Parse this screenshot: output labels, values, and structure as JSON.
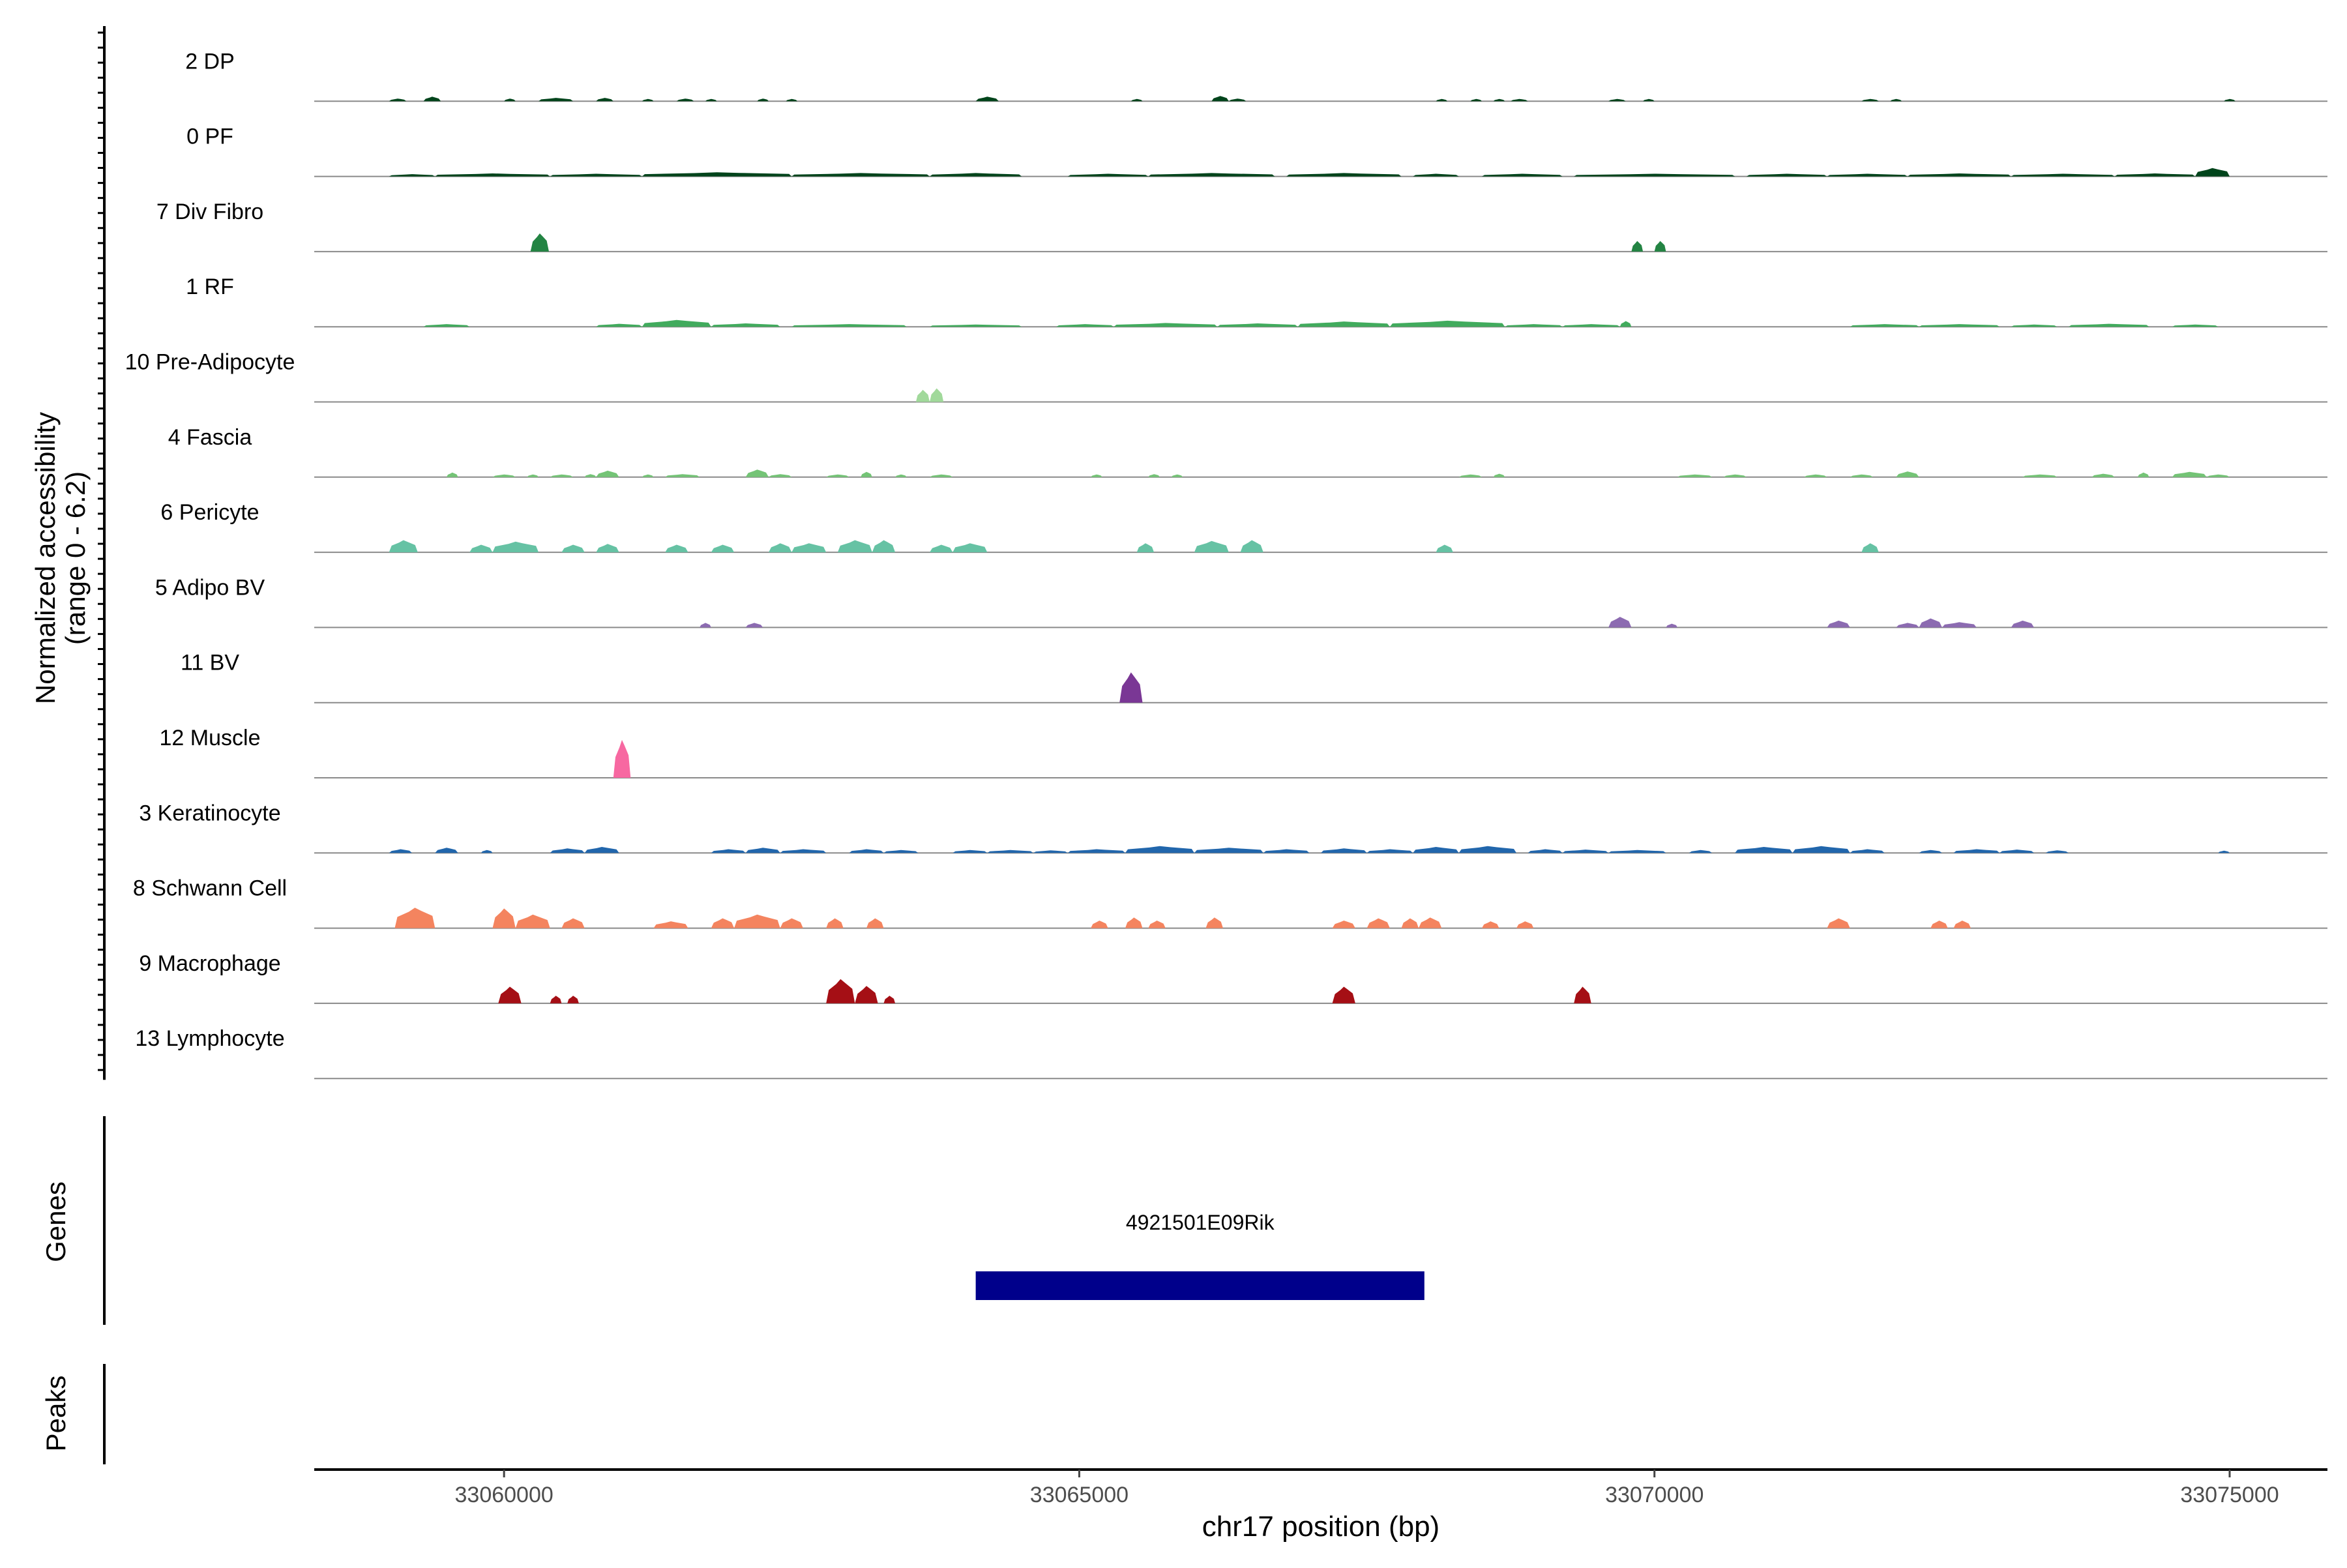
{
  "chart_data": {
    "type": "area",
    "title": "",
    "ylabel_line1": "Normalized accessibility",
    "ylabel_line2": "(range 0 - 6.2)",
    "y_range": [
      0,
      6.2
    ],
    "xlabel": "chr17 position (bp)",
    "xlim": [
      33058350,
      33075850
    ],
    "x_ticks": [
      33060000,
      33065000,
      33070000,
      33075000
    ],
    "x_tick_labels": [
      "33060000",
      "33065000",
      "33070000",
      "33075000"
    ],
    "tracks": [
      {
        "label": "2 DP",
        "color": "#00441b",
        "peaks": [
          [
            33059000,
            33059150,
            0.35
          ],
          [
            33059300,
            33059450,
            0.6
          ],
          [
            33060000,
            33060100,
            0.35
          ],
          [
            33060300,
            33060600,
            0.45
          ],
          [
            33060800,
            33060950,
            0.45
          ],
          [
            33061200,
            33061300,
            0.3
          ],
          [
            33061500,
            33061650,
            0.35
          ],
          [
            33061750,
            33061850,
            0.3
          ],
          [
            33062200,
            33062300,
            0.35
          ],
          [
            33062450,
            33062550,
            0.3
          ],
          [
            33064100,
            33064300,
            0.6
          ],
          [
            33065450,
            33065550,
            0.3
          ],
          [
            33066150,
            33066300,
            0.7
          ],
          [
            33066300,
            33066450,
            0.35
          ],
          [
            33068100,
            33068200,
            0.3
          ],
          [
            33068400,
            33068500,
            0.3
          ],
          [
            33068600,
            33068700,
            0.3
          ],
          [
            33068750,
            33068900,
            0.3
          ],
          [
            33069600,
            33069750,
            0.3
          ],
          [
            33069900,
            33070000,
            0.3
          ],
          [
            33071800,
            33071950,
            0.3
          ],
          [
            33072050,
            33072150,
            0.3
          ],
          [
            33074950,
            33075050,
            0.3
          ]
        ]
      },
      {
        "label": "0 PF",
        "color": "#00441b",
        "peaks": [
          [
            33059000,
            33059400,
            0.3
          ],
          [
            33059400,
            33060400,
            0.4
          ],
          [
            33060400,
            33061200,
            0.35
          ],
          [
            33061200,
            33062500,
            0.55
          ],
          [
            33062500,
            33063700,
            0.45
          ],
          [
            33063700,
            33064500,
            0.45
          ],
          [
            33064900,
            33065600,
            0.35
          ],
          [
            33065600,
            33066700,
            0.45
          ],
          [
            33066800,
            33067800,
            0.45
          ],
          [
            33067900,
            33068300,
            0.35
          ],
          [
            33068500,
            33069200,
            0.35
          ],
          [
            33069300,
            33070700,
            0.35
          ],
          [
            33070800,
            33071500,
            0.35
          ],
          [
            33071500,
            33072200,
            0.35
          ],
          [
            33072200,
            33073100,
            0.4
          ],
          [
            33073100,
            33074000,
            0.35
          ],
          [
            33074000,
            33074700,
            0.4
          ],
          [
            33074700,
            33075000,
            1.1
          ]
        ]
      },
      {
        "label": "7 Div Fibro",
        "color": "#238443",
        "peaks": [
          [
            33060230,
            33060390,
            2.4
          ],
          [
            33069800,
            33069900,
            1.4
          ],
          [
            33070000,
            33070100,
            1.4
          ]
        ]
      },
      {
        "label": "1 RF",
        "color": "#41ab5d",
        "peaks": [
          [
            33059300,
            33059700,
            0.35
          ],
          [
            33060800,
            33061200,
            0.4
          ],
          [
            33061200,
            33061800,
            0.9
          ],
          [
            33061800,
            33062400,
            0.45
          ],
          [
            33062500,
            33063500,
            0.35
          ],
          [
            33063700,
            33064500,
            0.3
          ],
          [
            33064800,
            33065300,
            0.35
          ],
          [
            33065300,
            33066200,
            0.5
          ],
          [
            33066200,
            33066900,
            0.45
          ],
          [
            33066900,
            33067700,
            0.7
          ],
          [
            33067700,
            33068700,
            0.8
          ],
          [
            33068700,
            33069200,
            0.35
          ],
          [
            33069200,
            33069700,
            0.35
          ],
          [
            33069700,
            33069800,
            0.75
          ],
          [
            33071700,
            33072300,
            0.35
          ],
          [
            33072300,
            33073000,
            0.35
          ],
          [
            33073100,
            33073500,
            0.3
          ],
          [
            33073600,
            33074300,
            0.4
          ],
          [
            33074500,
            33074900,
            0.3
          ]
        ]
      },
      {
        "label": "10 Pre-Adipocyte",
        "color": "#a1d99b",
        "peaks": [
          [
            33063580,
            33063700,
            1.6
          ],
          [
            33063700,
            33063820,
            1.8
          ]
        ]
      },
      {
        "label": "4 Fascia",
        "color": "#74c476",
        "peaks": [
          [
            33059500,
            33059600,
            0.6
          ],
          [
            33059900,
            33060100,
            0.35
          ],
          [
            33060200,
            33060300,
            0.35
          ],
          [
            33060400,
            33060600,
            0.35
          ],
          [
            33060700,
            33060800,
            0.4
          ],
          [
            33060800,
            33061000,
            0.85
          ],
          [
            33061200,
            33061300,
            0.35
          ],
          [
            33061400,
            33061700,
            0.4
          ],
          [
            33062100,
            33062300,
            1.0
          ],
          [
            33062300,
            33062500,
            0.4
          ],
          [
            33062800,
            33063000,
            0.35
          ],
          [
            33063100,
            33063200,
            0.7
          ],
          [
            33063400,
            33063500,
            0.35
          ],
          [
            33063700,
            33063900,
            0.35
          ],
          [
            33065100,
            33065200,
            0.35
          ],
          [
            33065600,
            33065700,
            0.4
          ],
          [
            33065800,
            33065900,
            0.35
          ],
          [
            33068300,
            33068500,
            0.35
          ],
          [
            33068600,
            33068700,
            0.45
          ],
          [
            33070200,
            33070500,
            0.35
          ],
          [
            33070600,
            33070800,
            0.35
          ],
          [
            33071300,
            33071500,
            0.35
          ],
          [
            33071700,
            33071900,
            0.35
          ],
          [
            33072100,
            33072300,
            0.75
          ],
          [
            33073200,
            33073500,
            0.35
          ],
          [
            33073800,
            33074000,
            0.45
          ],
          [
            33074200,
            33074300,
            0.6
          ],
          [
            33074500,
            33074800,
            0.7
          ],
          [
            33074800,
            33075000,
            0.35
          ]
        ]
      },
      {
        "label": "6 Pericyte",
        "color": "#66c2a4",
        "peaks": [
          [
            33059000,
            33059250,
            1.6
          ],
          [
            33059700,
            33059900,
            1.0
          ],
          [
            33059900,
            33060300,
            1.4
          ],
          [
            33060500,
            33060700,
            1.0
          ],
          [
            33060800,
            33061000,
            1.1
          ],
          [
            33061400,
            33061600,
            1.0
          ],
          [
            33061800,
            33062000,
            1.0
          ],
          [
            33062300,
            33062500,
            1.2
          ],
          [
            33062500,
            33062800,
            1.2
          ],
          [
            33062900,
            33063200,
            1.6
          ],
          [
            33063200,
            33063400,
            1.6
          ],
          [
            33063700,
            33063900,
            1.0
          ],
          [
            33063900,
            33064200,
            1.2
          ],
          [
            33065500,
            33065650,
            1.2
          ],
          [
            33066000,
            33066300,
            1.5
          ],
          [
            33066400,
            33066600,
            1.6
          ],
          [
            33068100,
            33068250,
            1.0
          ],
          [
            33071800,
            33071950,
            1.2
          ]
        ]
      },
      {
        "label": "5 Adipo BV",
        "color": "#8c6bb1",
        "peaks": [
          [
            33061700,
            33061800,
            0.6
          ],
          [
            33062100,
            33062250,
            0.6
          ],
          [
            33069600,
            33069800,
            1.4
          ],
          [
            33070100,
            33070200,
            0.5
          ],
          [
            33071500,
            33071700,
            0.9
          ],
          [
            33072100,
            33072300,
            0.6
          ],
          [
            33072300,
            33072500,
            1.2
          ],
          [
            33072500,
            33072800,
            0.7
          ],
          [
            33073100,
            33073300,
            0.9
          ]
        ]
      },
      {
        "label": "11 BV",
        "color": "#7a3795",
        "peaks": [
          [
            33065350,
            33065550,
            4.0
          ]
        ]
      },
      {
        "label": "12 Muscle",
        "color": "#f768a1",
        "peaks": [
          [
            33060950,
            33061100,
            5.0
          ]
        ]
      },
      {
        "label": "3 Keratinocyte",
        "color": "#2166ac",
        "peaks": [
          [
            33059000,
            33059200,
            0.5
          ],
          [
            33059400,
            33059600,
            0.7
          ],
          [
            33059800,
            33059900,
            0.4
          ],
          [
            33060400,
            33060700,
            0.6
          ],
          [
            33060700,
            33061000,
            0.8
          ],
          [
            33061800,
            33062100,
            0.5
          ],
          [
            33062100,
            33062400,
            0.7
          ],
          [
            33062400,
            33062800,
            0.5
          ],
          [
            33063000,
            33063300,
            0.5
          ],
          [
            33063300,
            33063600,
            0.4
          ],
          [
            33063900,
            33064200,
            0.4
          ],
          [
            33064200,
            33064600,
            0.4
          ],
          [
            33064600,
            33064900,
            0.35
          ],
          [
            33064900,
            33065400,
            0.5
          ],
          [
            33065400,
            33066000,
            0.9
          ],
          [
            33066000,
            33066600,
            0.7
          ],
          [
            33066600,
            33067000,
            0.5
          ],
          [
            33067100,
            33067500,
            0.6
          ],
          [
            33067500,
            33067900,
            0.5
          ],
          [
            33067900,
            33068300,
            0.8
          ],
          [
            33068300,
            33068800,
            0.9
          ],
          [
            33068900,
            33069200,
            0.5
          ],
          [
            33069200,
            33069600,
            0.45
          ],
          [
            33069600,
            33070100,
            0.4
          ],
          [
            33070300,
            33070500,
            0.4
          ],
          [
            33070700,
            33071200,
            0.8
          ],
          [
            33071200,
            33071700,
            0.9
          ],
          [
            33071700,
            33072000,
            0.5
          ],
          [
            33072300,
            33072500,
            0.4
          ],
          [
            33072600,
            33073000,
            0.5
          ],
          [
            33073000,
            33073300,
            0.45
          ],
          [
            33073400,
            33073600,
            0.35
          ],
          [
            33074900,
            33075000,
            0.3
          ]
        ]
      },
      {
        "label": "8 Schwann Cell",
        "color": "#f4845f",
        "peaks": [
          [
            33059050,
            33059400,
            2.7
          ],
          [
            33059900,
            33060100,
            2.6
          ],
          [
            33060100,
            33060400,
            1.8
          ],
          [
            33060500,
            33060700,
            1.3
          ],
          [
            33061300,
            33061600,
            0.9
          ],
          [
            33061800,
            33062000,
            1.3
          ],
          [
            33062000,
            33062400,
            1.8
          ],
          [
            33062400,
            33062600,
            1.3
          ],
          [
            33062800,
            33062950,
            1.3
          ],
          [
            33063150,
            33063300,
            1.3
          ],
          [
            33065100,
            33065250,
            1.0
          ],
          [
            33065400,
            33065550,
            1.4
          ],
          [
            33065600,
            33065750,
            1.0
          ],
          [
            33066100,
            33066250,
            1.4
          ],
          [
            33067200,
            33067400,
            1.0
          ],
          [
            33067500,
            33067700,
            1.3
          ],
          [
            33067800,
            33067950,
            1.3
          ],
          [
            33067950,
            33068150,
            1.4
          ],
          [
            33068500,
            33068650,
            0.9
          ],
          [
            33068800,
            33068950,
            0.9
          ],
          [
            33071500,
            33071700,
            1.3
          ],
          [
            33072400,
            33072550,
            1.0
          ],
          [
            33072600,
            33072750,
            1.0
          ]
        ]
      },
      {
        "label": "9 Macrophage",
        "color": "#a50f15",
        "peaks": [
          [
            33059950,
            33060150,
            2.2
          ],
          [
            33060400,
            33060500,
            1.0
          ],
          [
            33060550,
            33060650,
            1.0
          ],
          [
            33062800,
            33063050,
            3.2
          ],
          [
            33063050,
            33063250,
            2.3
          ],
          [
            33063300,
            33063400,
            1.0
          ],
          [
            33067200,
            33067400,
            2.2
          ],
          [
            33069300,
            33069450,
            2.2
          ]
        ]
      },
      {
        "label": "13 Lymphocyte",
        "color": "#08306b",
        "peaks": []
      }
    ],
    "gene_track_label": "Genes",
    "genes": [
      {
        "name": "4921501E09Rik",
        "start": 33064100,
        "end": 33068000,
        "color": "#00008b"
      }
    ],
    "peaks_track_label": "Peaks"
  }
}
